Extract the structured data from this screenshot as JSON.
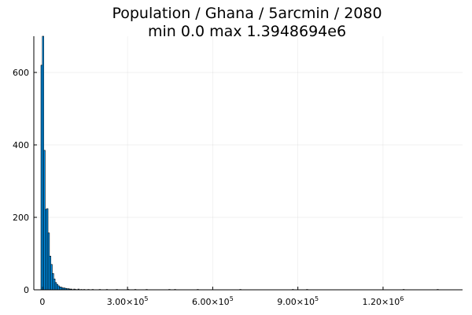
{
  "chart_data": {
    "type": "bar",
    "title_line1": "Population / Ghana / 5arcmin / 2080",
    "title_line2": "min 0.0  max 1.3948694e6",
    "xlabel": "",
    "ylabel": "",
    "grid": true,
    "legend": "none",
    "bar_color": "#009AF9",
    "xlim": [
      -30000,
      1480000
    ],
    "ylim": [
      0,
      700
    ],
    "x_ticks": [
      {
        "value": 0,
        "mantissa": "0",
        "exp": ""
      },
      {
        "value": 300000,
        "mantissa": "3.00×10",
        "exp": "5"
      },
      {
        "value": 600000,
        "mantissa": "6.00×10",
        "exp": "5"
      },
      {
        "value": 900000,
        "mantissa": "9.00×10",
        "exp": "5"
      },
      {
        "value": 1200000,
        "mantissa": "1.20×10",
        "exp": "6"
      }
    ],
    "y_ticks": [
      {
        "value": 0,
        "label": "0"
      },
      {
        "value": 200,
        "label": "200"
      },
      {
        "value": 400,
        "label": "400"
      },
      {
        "value": 600,
        "label": "600"
      }
    ],
    "bin_width": 5000,
    "bin_starts": [
      -5000,
      0,
      5000,
      10000,
      15000,
      20000,
      25000,
      30000,
      35000,
      40000,
      45000,
      50000,
      55000,
      60000,
      65000,
      70000,
      75000,
      80000,
      85000,
      90000,
      95000,
      100000,
      110000,
      115000,
      125000,
      135000,
      145000,
      160000,
      175000,
      200000,
      225000,
      260000,
      300000,
      325000,
      365000,
      445000,
      465000,
      545000,
      695000,
      880000,
      930000,
      1270000,
      1390000
    ],
    "counts": [
      620,
      700,
      385,
      222,
      224,
      157,
      93,
      70,
      45,
      30,
      20,
      15,
      11,
      8,
      7,
      5,
      5,
      4,
      3,
      3,
      2,
      2,
      2,
      1,
      2,
      1,
      1,
      1,
      1,
      1,
      1,
      1,
      1,
      1,
      1,
      1,
      1,
      1,
      1,
      1,
      1,
      1,
      1
    ]
  }
}
